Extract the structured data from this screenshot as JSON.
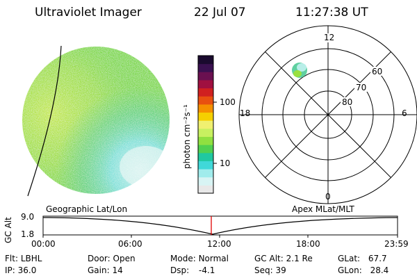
{
  "header": {
    "instrument": "Ultraviolet Imager",
    "date": "22 Jul 07",
    "time": "11:27:38 UT"
  },
  "colorbar": {
    "label": "photon cm⁻²s⁻¹",
    "ticks": [
      "100",
      "10"
    ],
    "colors": [
      "#1a0a2e",
      "#3a1050",
      "#6a1050",
      "#a01040",
      "#d02020",
      "#e85010",
      "#f59000",
      "#f5d000",
      "#f0f070",
      "#c8f060",
      "#90e040",
      "#50d050",
      "#20c8a0",
      "#40d8d8",
      "#a0ecec",
      "#d8f4f4",
      "#e8e8e8"
    ]
  },
  "polar_plot": {
    "mlt_labels": [
      "12",
      "18",
      "6",
      "0"
    ],
    "mlat_labels": [
      "60",
      "70",
      "80"
    ]
  },
  "timeline": {
    "left_title": "Geographic Lat/Lon",
    "right_title": "Apex MLat/MLT",
    "axis_label": "GC Alt",
    "y_ticks": [
      "9.0",
      "1.8"
    ],
    "x_ticks": [
      "00:00",
      "06:00",
      "12:00",
      "18:00",
      "23:59"
    ]
  },
  "status": {
    "row1": [
      {
        "label": "Flt:",
        "value": "LBHL"
      },
      {
        "label": "Door:",
        "value": "Open"
      },
      {
        "label": "Mode:",
        "value": "Normal"
      },
      {
        "label": "GC Alt:",
        "value": "2.1 Re"
      },
      {
        "label": "GLat:",
        "value": "67.7"
      }
    ],
    "row2": [
      {
        "label": "IP:",
        "value": "36.0"
      },
      {
        "label": "Gain:",
        "value": "14"
      },
      {
        "label": "Dsp:",
        "value": "-4.1"
      },
      {
        "label": "Seq:",
        "value": "39"
      },
      {
        "label": "GLon:",
        "value": "28.4"
      }
    ]
  }
}
